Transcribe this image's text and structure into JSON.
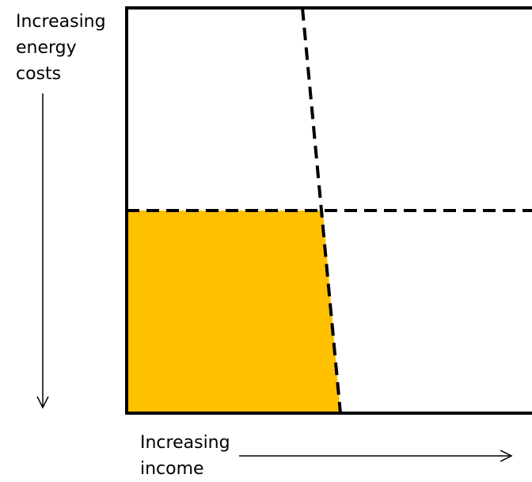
{
  "y_axis": {
    "label_lines": [
      "Increasing",
      "energy",
      "costs"
    ]
  },
  "x_axis": {
    "label_lines": [
      "Increasing",
      "income"
    ]
  },
  "colors": {
    "highlight_fill": "#FFC000",
    "stroke": "#000000",
    "background": "#FFFFFF"
  }
}
